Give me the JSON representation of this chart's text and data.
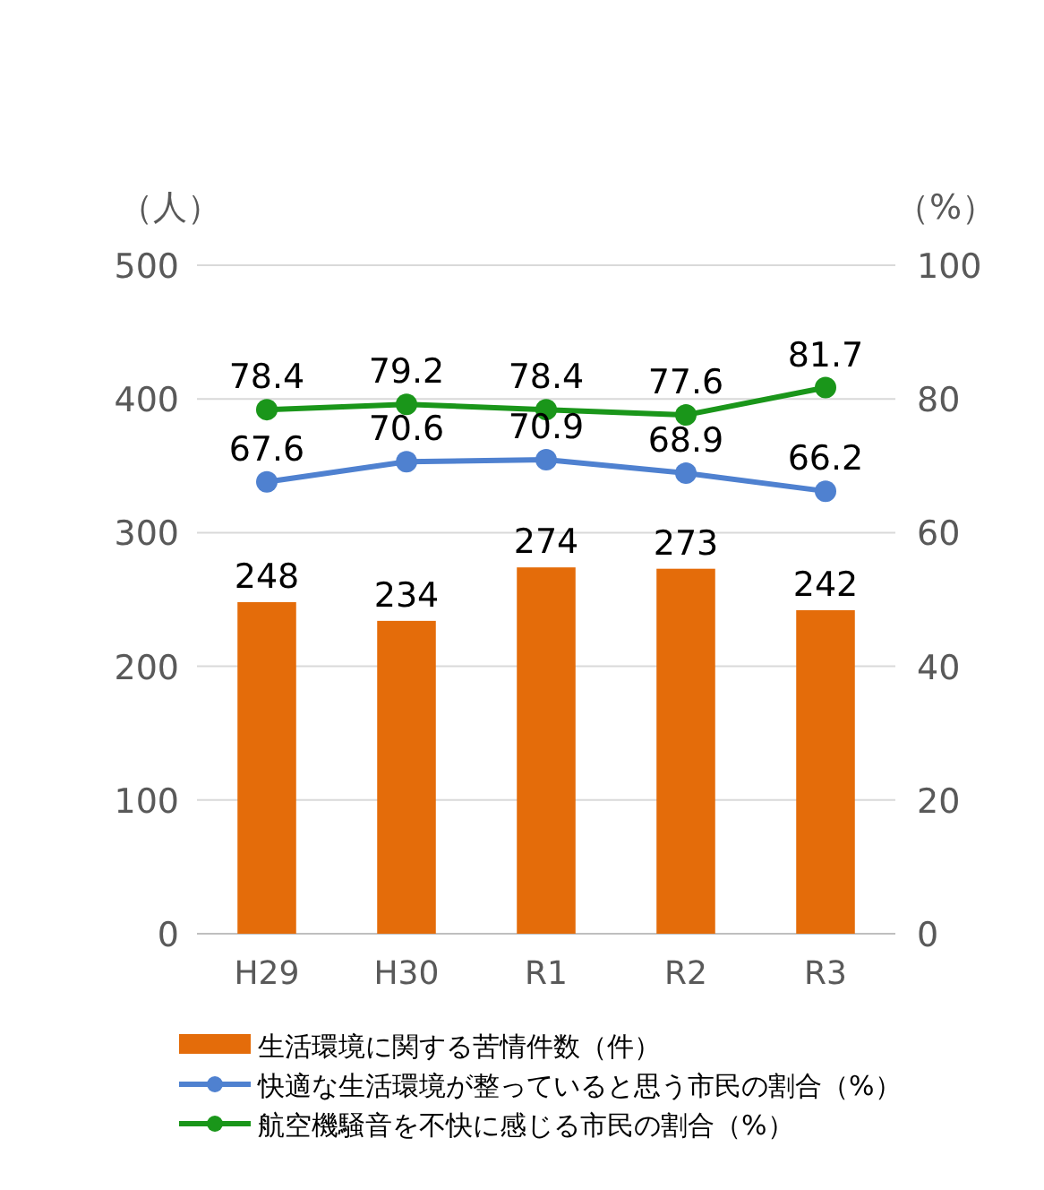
{
  "chart_data": {
    "type": "bar",
    "categories": [
      "H29",
      "H30",
      "R1",
      "R2",
      "R3"
    ],
    "ylabel": "（人）",
    "y2label": "（%）",
    "ylim": [
      0,
      500
    ],
    "yticks": [
      0,
      100,
      200,
      300,
      400,
      500
    ],
    "y2lim": [
      0,
      100
    ],
    "y2ticks": [
      0,
      20,
      40,
      60,
      80,
      100
    ],
    "grid": "y",
    "legend": "bottom",
    "marker": "circle",
    "data_labels": true,
    "series": [
      {
        "name": "生活環境に関する苦情件数（件）",
        "color": "#e46c0a",
        "values": [
          248,
          234,
          274,
          273,
          242
        ]
      },
      {
        "name": "快適な生活環境が整っていると思う市民の割合（%）",
        "type": "line",
        "axis": "y2",
        "color": "#4f81d0",
        "values": [
          67.6,
          70.6,
          70.9,
          68.9,
          66.2
        ]
      },
      {
        "name": "航空機騒音を不快に感じる市民の割合（%）",
        "type": "line",
        "axis": "y2",
        "color": "#1a961a",
        "values": [
          78.4,
          79.2,
          78.4,
          77.6,
          81.7
        ]
      }
    ]
  }
}
